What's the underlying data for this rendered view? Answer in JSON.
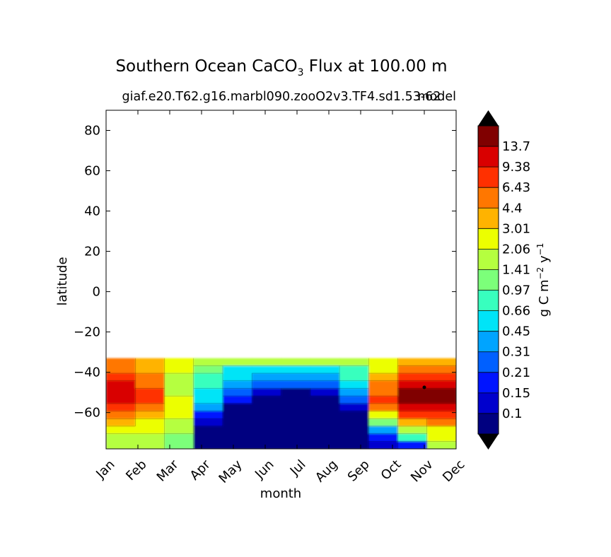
{
  "chart_data": {
    "type": "heatmap",
    "title_main": "Southern Ocean CaCO",
    "title_sub": "3",
    "title_rest": " Flux at 100.00 m",
    "subtitle": "giaf.e20.T62.g16.marbl090.zooO2v3.TF4.sd1.53-62",
    "subtitle_overlay": "model",
    "xlabel": "month",
    "ylabel": "latitude",
    "x_categories": [
      "Jan",
      "Feb",
      "Mar",
      "Apr",
      "May",
      "Jun",
      "Jul",
      "Aug",
      "Sep",
      "Oct",
      "Nov",
      "Dec"
    ],
    "y_ticks": [
      "80",
      "60",
      "40",
      "20",
      "0",
      "−20",
      "−40",
      "−60"
    ],
    "y_tick_values": [
      80,
      60,
      40,
      20,
      0,
      -20,
      -40,
      -60
    ],
    "ylim": [
      -78,
      90
    ],
    "data_lat_range": [
      -78,
      -33
    ],
    "colorbar_label_main": "g C m",
    "colorbar_label_exp1": "−2",
    "colorbar_label_mid": " y",
    "colorbar_label_exp2": "−1",
    "levels": [
      "13.7",
      "9.38",
      "6.43",
      "4.4",
      "3.01",
      "2.06",
      "1.41",
      "0.97",
      "0.66",
      "0.45",
      "0.31",
      "0.21",
      "0.15",
      "0.1"
    ],
    "level_values": [
      13.7,
      9.38,
      6.43,
      4.4,
      3.01,
      2.06,
      1.41,
      0.97,
      0.66,
      0.45,
      0.31,
      0.21,
      0.15,
      0.1
    ],
    "colors_top_to_bottom": [
      "#800000",
      "#d90000",
      "#ff3000",
      "#ff7700",
      "#ffb300",
      "#ecff00",
      "#b5ff3f",
      "#7cff7a",
      "#38ffbe",
      "#00e4f7",
      "#00a4ff",
      "#0060ff",
      "#0014ff",
      "#0000cd",
      "#000080"
    ],
    "extend_top_color": "#000000",
    "extend_bottom_color": "#000000",
    "grid": [
      [
        3,
        4,
        5,
        6,
        6,
        6,
        6,
        6,
        6,
        5,
        4,
        4
      ],
      [
        3,
        4,
        5,
        7,
        9,
        9,
        9,
        9,
        8,
        5,
        3,
        3
      ],
      [
        2,
        3,
        6,
        8,
        9,
        10,
        10,
        10,
        8,
        4,
        2,
        2
      ],
      [
        1,
        3,
        6,
        8,
        10,
        11,
        11,
        11,
        9,
        3,
        1,
        1
      ],
      [
        1,
        2,
        6,
        9,
        11,
        13,
        14,
        13,
        10,
        3,
        0,
        0
      ],
      [
        1,
        2,
        5,
        9,
        12,
        14,
        14,
        14,
        11,
        2,
        0,
        0
      ],
      [
        2,
        3,
        5,
        10,
        14,
        14,
        14,
        14,
        13,
        3,
        1,
        1
      ],
      [
        3,
        4,
        5,
        12,
        14,
        14,
        14,
        14,
        14,
        5,
        2,
        2
      ],
      [
        4,
        5,
        6,
        13,
        14,
        14,
        14,
        14,
        14,
        7,
        4,
        3
      ],
      [
        5,
        5,
        6,
        14,
        14,
        14,
        14,
        14,
        14,
        10,
        6,
        5
      ],
      [
        6,
        6,
        7,
        14,
        14,
        14,
        14,
        14,
        14,
        12,
        8,
        5
      ],
      [
        6,
        6,
        7,
        14,
        14,
        14,
        14,
        14,
        14,
        13,
        12,
        6
      ]
    ]
  }
}
